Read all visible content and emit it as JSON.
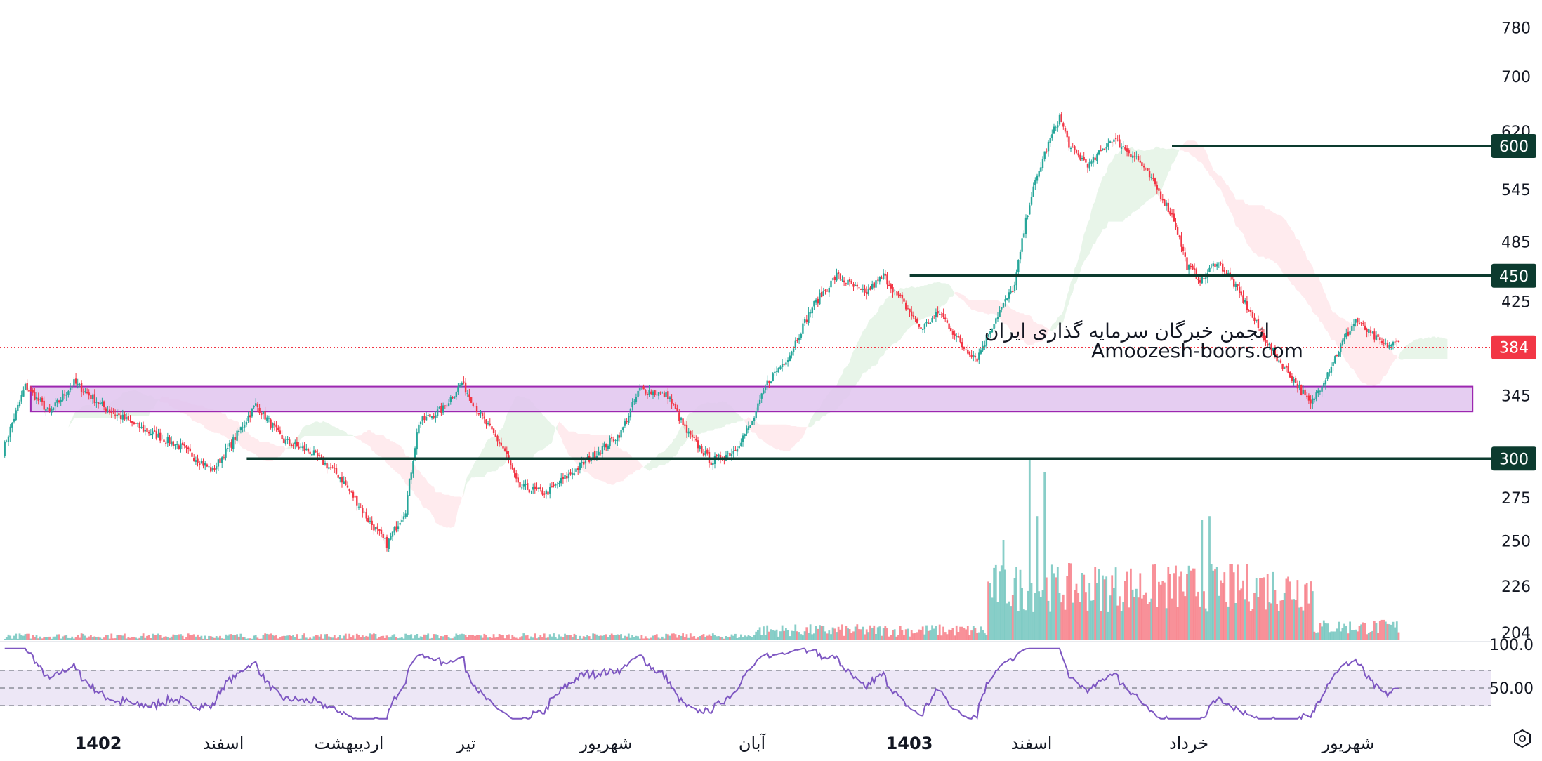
{
  "chart_data": {
    "type": "candlestick",
    "title": "",
    "price_axis": {
      "ticks": [
        780,
        700,
        620,
        545,
        485,
        425,
        345,
        275,
        250,
        226,
        204
      ],
      "scale": "log",
      "badges": [
        {
          "value": 600,
          "label": "600",
          "color": "#0c3b2f"
        },
        {
          "value": 450,
          "label": "450",
          "color": "#0c3b2f"
        },
        {
          "value": 384,
          "label": "384",
          "color": "#f23645"
        },
        {
          "value": 300,
          "label": "300",
          "color": "#0c3b2f"
        }
      ]
    },
    "time_axis": {
      "labels": [
        {
          "text": "1402",
          "bold": true
        },
        {
          "text": "اسفند",
          "bold": false
        },
        {
          "text": "اردیبهشت",
          "bold": false
        },
        {
          "text": "تیر",
          "bold": false
        },
        {
          "text": "شهریور",
          "bold": false
        },
        {
          "text": "آبان",
          "bold": false
        },
        {
          "text": "1403",
          "bold": true
        },
        {
          "text": "اسفند",
          "bold": false
        },
        {
          "text": "خرداد",
          "bold": false
        },
        {
          "text": "شهریور",
          "bold": false
        }
      ]
    },
    "horizontal_levels": [
      {
        "value": 600,
        "start_fraction": 0.76
      },
      {
        "value": 450,
        "start_fraction": 0.59
      },
      {
        "value": 300,
        "start_fraction": 0.16
      },
      {
        "value": 384,
        "style": "dotted"
      }
    ],
    "support_zone": {
      "low": 333,
      "high": 352,
      "start_fraction": 0.02,
      "end_fraction": 0.955
    },
    "anchors": [
      [
        0,
        305
      ],
      [
        12,
        352
      ],
      [
        25,
        332
      ],
      [
        38,
        355
      ],
      [
        55,
        335
      ],
      [
        75,
        320
      ],
      [
        95,
        308
      ],
      [
        112,
        292
      ],
      [
        122,
        310
      ],
      [
        135,
        338
      ],
      [
        150,
        312
      ],
      [
        165,
        304
      ],
      [
        180,
        288
      ],
      [
        195,
        262
      ],
      [
        205,
        248
      ],
      [
        215,
        268
      ],
      [
        222,
        325
      ],
      [
        235,
        335
      ],
      [
        245,
        355
      ],
      [
        255,
        330
      ],
      [
        268,
        305
      ],
      [
        275,
        282
      ],
      [
        290,
        278
      ],
      [
        305,
        292
      ],
      [
        318,
        305
      ],
      [
        330,
        318
      ],
      [
        340,
        350
      ],
      [
        355,
        345
      ],
      [
        365,
        318
      ],
      [
        378,
        298
      ],
      [
        390,
        305
      ],
      [
        400,
        325
      ],
      [
        408,
        355
      ],
      [
        420,
        378
      ],
      [
        432,
        420
      ],
      [
        445,
        450
      ],
      [
        460,
        432
      ],
      [
        470,
        450
      ],
      [
        480,
        425
      ],
      [
        490,
        400
      ],
      [
        500,
        415
      ],
      [
        512,
        385
      ],
      [
        520,
        375
      ],
      [
        530,
        410
      ],
      [
        540,
        440
      ],
      [
        548,
        530
      ],
      [
        556,
        590
      ],
      [
        564,
        640
      ],
      [
        570,
        595
      ],
      [
        580,
        575
      ],
      [
        592,
        610
      ],
      [
        605,
        585
      ],
      [
        615,
        550
      ],
      [
        625,
        510
      ],
      [
        632,
        460
      ],
      [
        640,
        445
      ],
      [
        648,
        465
      ],
      [
        655,
        448
      ],
      [
        664,
        420
      ],
      [
        672,
        395
      ],
      [
        680,
        375
      ],
      [
        690,
        355
      ],
      [
        698,
        338
      ],
      [
        706,
        360
      ],
      [
        714,
        385
      ],
      [
        722,
        408
      ],
      [
        730,
        395
      ],
      [
        738,
        385
      ],
      [
        745,
        388
      ]
    ],
    "volume_spikes": [
      {
        "idx": 548,
        "height": 1.0,
        "up": true
      },
      {
        "idx": 556,
        "height": 0.92,
        "up": false
      },
      {
        "idx": 552,
        "height": 0.68,
        "up": false
      },
      {
        "idx": 534,
        "height": 0.55,
        "up": false
      },
      {
        "idx": 640,
        "height": 0.66,
        "up": true
      },
      {
        "idx": 644,
        "height": 0.68,
        "up": true
      },
      {
        "idx": 671,
        "height": 0.34,
        "up": true
      }
    ],
    "ichimoku_cloud": true,
    "rsi": {
      "ticks": [
        "100.0",
        "50.00"
      ],
      "upper": 70,
      "lower": 30,
      "line_color": "#7e57c2",
      "band_color": "#ede7f6"
    },
    "colors": {
      "up": "#26a69a",
      "down": "#f23645",
      "level": "#0c3b2f",
      "zone_fill": "#e1c4ef",
      "zone_border": "#9c27b0",
      "cloud_up": "#e8f5e9",
      "cloud_down": "#ffebee"
    }
  },
  "watermark": {
    "line1": "انجمن خبرگان سرمایه گذاری ایران",
    "line2": "Amoozesh-boors.com"
  },
  "settings_icon": "settings-hexagon-icon"
}
